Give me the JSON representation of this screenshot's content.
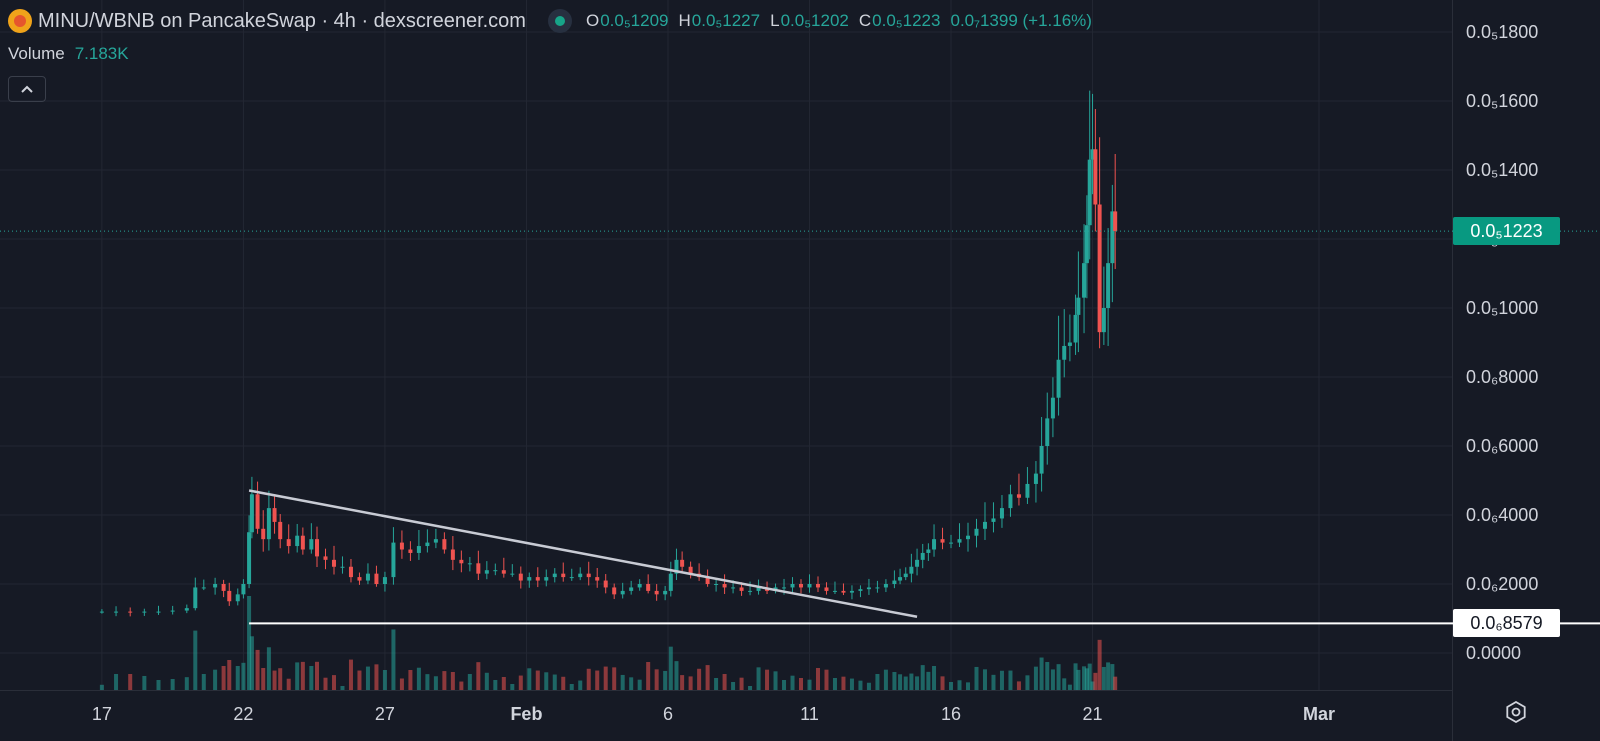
{
  "header": {
    "title": "MINU/WBNB on PancakeSwap · 4h · dexscreener.com",
    "ohlc": [
      {
        "key": "O",
        "value": "0.0₅1209"
      },
      {
        "key": "H",
        "value": "0.0₅1227"
      },
      {
        "key": "L",
        "value": "0.0₅1202"
      },
      {
        "key": "C",
        "value": "0.0₅1223"
      }
    ],
    "change": "0.0₇1399 (+1.16%)"
  },
  "volume": {
    "label": "Volume",
    "value": "7.183K"
  },
  "collapse_icon": "chevron-up-icon",
  "settings_icon": "gear-icon",
  "last_price_badge": "0.0₅1223",
  "level_badge": "0.0₆8579",
  "colors": {
    "background": "#161a25",
    "grid": "#232733",
    "up": "#26a69a",
    "down": "#ef5350",
    "text": "#d1d4dc",
    "trendline": "#c8cbd4",
    "level": "#ffffff"
  },
  "chart_data": {
    "type": "candlestick",
    "title": "MINU/WBNB on PancakeSwap · 4h · dexscreener.com",
    "interval": "4h",
    "price_scale_note": "0.0₅X = X×1e-9, 0.0₆X = X×1e-10 (values below in units of 1e-10)",
    "y_ticks": [
      "0.0₅1800",
      "0.0₅1600",
      "0.0₅1400",
      "0.0₅1200",
      "0.0₅1000",
      "0.0₆8000",
      "0.0₆6000",
      "0.0₆4000",
      "0.0₆2000",
      "0.0000"
    ],
    "y_tick_values": [
      18000,
      16000,
      14000,
      12000,
      10000,
      8000,
      6000,
      4000,
      2000,
      0
    ],
    "ylim": [
      -1000,
      19000
    ],
    "x_ticks": [
      {
        "label": "17",
        "day": 17
      },
      {
        "label": "22",
        "day": 22
      },
      {
        "label": "27",
        "day": 27
      },
      {
        "label": "Feb",
        "day": 32
      },
      {
        "label": "6",
        "day": 37
      },
      {
        "label": "11",
        "day": 42
      },
      {
        "label": "16",
        "day": 47
      },
      {
        "label": "21",
        "day": 52
      },
      {
        "label": "Mar",
        "day": 60
      }
    ],
    "xlim_days": [
      13.4,
      64.7
    ],
    "candles": [
      {
        "d": 17.0,
        "c": 1200
      },
      {
        "d": 17.5,
        "c": 1200
      },
      {
        "d": 18.0,
        "c": 1180
      },
      {
        "d": 18.5,
        "c": 1200
      },
      {
        "d": 19.0,
        "c": 1200
      },
      {
        "d": 19.5,
        "c": 1230
      },
      {
        "d": 20.0,
        "c": 1300
      },
      {
        "d": 20.3,
        "c": 1900
      },
      {
        "d": 20.6,
        "c": 1900
      },
      {
        "d": 21.0,
        "c": 2000
      },
      {
        "d": 21.3,
        "c": 1800
      },
      {
        "d": 21.5,
        "c": 1500
      },
      {
        "d": 21.8,
        "c": 1700
      },
      {
        "d": 22.0,
        "c": 2000
      },
      {
        "d": 22.2,
        "c": 3500
      },
      {
        "d": 22.3,
        "c": 4600
      },
      {
        "d": 22.5,
        "c": 3600
      },
      {
        "d": 22.7,
        "c": 3300
      },
      {
        "d": 22.9,
        "c": 4200
      },
      {
        "d": 23.1,
        "c": 3800
      },
      {
        "d": 23.3,
        "c": 3300
      },
      {
        "d": 23.6,
        "c": 3100
      },
      {
        "d": 23.9,
        "c": 3400
      },
      {
        "d": 24.1,
        "c": 3000
      },
      {
        "d": 24.4,
        "c": 3300
      },
      {
        "d": 24.6,
        "c": 2800
      },
      {
        "d": 24.9,
        "c": 2700
      },
      {
        "d": 25.2,
        "c": 2500
      },
      {
        "d": 25.5,
        "c": 2500
      },
      {
        "d": 25.8,
        "c": 2200
      },
      {
        "d": 26.1,
        "c": 2100
      },
      {
        "d": 26.4,
        "c": 2300
      },
      {
        "d": 26.7,
        "c": 2000
      },
      {
        "d": 27.0,
        "c": 2200
      },
      {
        "d": 27.3,
        "c": 3200
      },
      {
        "d": 27.6,
        "c": 3000
      },
      {
        "d": 27.9,
        "c": 2900
      },
      {
        "d": 28.2,
        "c": 3100
      },
      {
        "d": 28.5,
        "c": 3200
      },
      {
        "d": 28.8,
        "c": 3300
      },
      {
        "d": 29.1,
        "c": 3000
      },
      {
        "d": 29.4,
        "c": 2700
      },
      {
        "d": 29.7,
        "c": 2600
      },
      {
        "d": 30.0,
        "c": 2600
      },
      {
        "d": 30.3,
        "c": 2300
      },
      {
        "d": 30.6,
        "c": 2400
      },
      {
        "d": 30.9,
        "c": 2400
      },
      {
        "d": 31.2,
        "c": 2300
      },
      {
        "d": 31.5,
        "c": 2300
      },
      {
        "d": 31.8,
        "c": 2100
      },
      {
        "d": 32.1,
        "c": 2200
      },
      {
        "d": 32.4,
        "c": 2100
      },
      {
        "d": 32.7,
        "c": 2200
      },
      {
        "d": 33.0,
        "c": 2300
      },
      {
        "d": 33.3,
        "c": 2200
      },
      {
        "d": 33.6,
        "c": 2200
      },
      {
        "d": 33.9,
        "c": 2300
      },
      {
        "d": 34.2,
        "c": 2200
      },
      {
        "d": 34.5,
        "c": 2100
      },
      {
        "d": 34.8,
        "c": 1900
      },
      {
        "d": 35.1,
        "c": 1700
      },
      {
        "d": 35.4,
        "c": 1800
      },
      {
        "d": 35.7,
        "c": 1900
      },
      {
        "d": 36.0,
        "c": 2000
      },
      {
        "d": 36.3,
        "c": 1800
      },
      {
        "d": 36.6,
        "c": 1700
      },
      {
        "d": 36.9,
        "c": 1800
      },
      {
        "d": 37.1,
        "c": 2300
      },
      {
        "d": 37.3,
        "c": 2700
      },
      {
        "d": 37.5,
        "c": 2500
      },
      {
        "d": 37.8,
        "c": 2300
      },
      {
        "d": 38.1,
        "c": 2200
      },
      {
        "d": 38.4,
        "c": 2000
      },
      {
        "d": 38.7,
        "c": 2000
      },
      {
        "d": 39.0,
        "c": 1900
      },
      {
        "d": 39.3,
        "c": 1900
      },
      {
        "d": 39.6,
        "c": 1800
      },
      {
        "d": 39.9,
        "c": 1800
      },
      {
        "d": 40.2,
        "c": 1900
      },
      {
        "d": 40.5,
        "c": 1800
      },
      {
        "d": 40.8,
        "c": 1900
      },
      {
        "d": 41.1,
        "c": 1900
      },
      {
        "d": 41.4,
        "c": 2000
      },
      {
        "d": 41.7,
        "c": 1900
      },
      {
        "d": 42.0,
        "c": 2000
      },
      {
        "d": 42.3,
        "c": 1900
      },
      {
        "d": 42.6,
        "c": 1800
      },
      {
        "d": 42.9,
        "c": 1800
      },
      {
        "d": 43.2,
        "c": 1750
      },
      {
        "d": 43.5,
        "c": 1800
      },
      {
        "d": 43.8,
        "c": 1850
      },
      {
        "d": 44.1,
        "c": 1900
      },
      {
        "d": 44.4,
        "c": 1900
      },
      {
        "d": 44.7,
        "c": 2000
      },
      {
        "d": 45.0,
        "c": 2100
      },
      {
        "d": 45.2,
        "c": 2200
      },
      {
        "d": 45.4,
        "c": 2300
      },
      {
        "d": 45.6,
        "c": 2500
      },
      {
        "d": 45.8,
        "c": 2700
      },
      {
        "d": 46.0,
        "c": 2900
      },
      {
        "d": 46.2,
        "c": 3000
      },
      {
        "d": 46.4,
        "c": 3300
      },
      {
        "d": 46.7,
        "c": 3200
      },
      {
        "d": 47.0,
        "c": 3200
      },
      {
        "d": 47.3,
        "c": 3300
      },
      {
        "d": 47.6,
        "c": 3400
      },
      {
        "d": 47.9,
        "c": 3600
      },
      {
        "d": 48.2,
        "c": 3800
      },
      {
        "d": 48.5,
        "c": 3900
      },
      {
        "d": 48.8,
        "c": 4200
      },
      {
        "d": 49.1,
        "c": 4600
      },
      {
        "d": 49.4,
        "c": 4500
      },
      {
        "d": 49.7,
        "c": 4900
      },
      {
        "d": 50.0,
        "c": 5200
      },
      {
        "d": 50.2,
        "c": 6000
      },
      {
        "d": 50.4,
        "c": 6800
      },
      {
        "d": 50.6,
        "c": 7400
      },
      {
        "d": 50.8,
        "c": 8500
      },
      {
        "d": 51.0,
        "c": 8900
      },
      {
        "d": 51.2,
        "c": 9000
      },
      {
        "d": 51.4,
        "c": 9800
      },
      {
        "d": 51.5,
        "c": 10300
      },
      {
        "d": 51.7,
        "c": 11300
      },
      {
        "d": 51.8,
        "c": 12400
      },
      {
        "d": 51.9,
        "c": 14300
      },
      {
        "d": 52.0,
        "c": 14600
      },
      {
        "d": 52.1,
        "c": 13000
      },
      {
        "d": 52.25,
        "c": 9300
      },
      {
        "d": 52.4,
        "c": 10000
      },
      {
        "d": 52.55,
        "c": 11300
      },
      {
        "d": 52.7,
        "c": 12800
      },
      {
        "d": 52.8,
        "c": 12230
      }
    ],
    "series": [
      {
        "name": "Volume",
        "type": "histogram"
      }
    ],
    "annotations": [
      {
        "type": "trendline",
        "from": {
          "d": 22.2,
          "price": 4710
        },
        "to": {
          "d": 45.8,
          "price": 1050
        }
      },
      {
        "type": "horizontal_line",
        "price": 858,
        "label": "0.0₆8579"
      }
    ],
    "last_price": 12230,
    "last_price_label": "0.0₅1223"
  }
}
